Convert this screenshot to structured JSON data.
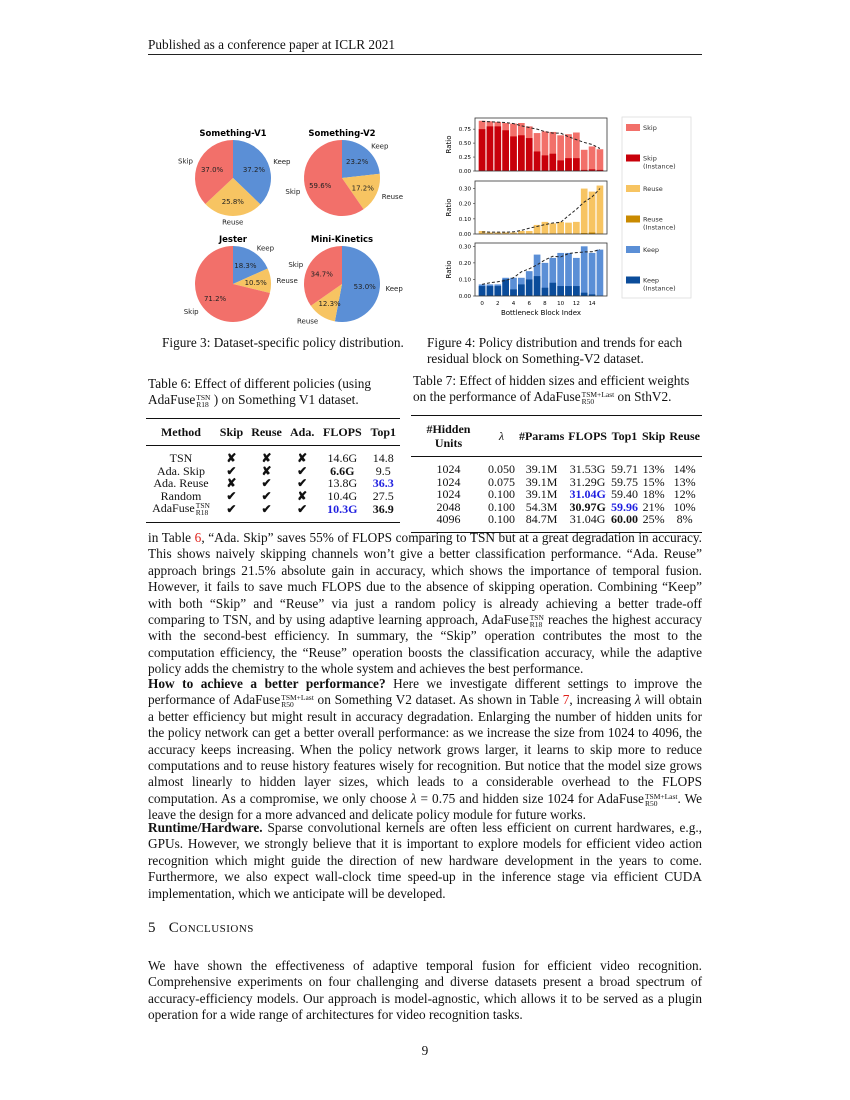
{
  "header": {
    "running_title": "Published as a conference paper at ICLR 2021"
  },
  "figure3": {
    "caption": "Figure 3: Dataset-specific policy distribution.",
    "chart_data": {
      "type": "pie",
      "colors": {
        "Keep": "#5b8fd6",
        "Reuse": "#f7c462",
        "Skip": "#f2706a"
      },
      "pies": [
        {
          "title": "Something-V1",
          "slices": [
            {
              "label": "Keep",
              "value": 37.2,
              "text": "37.2%"
            },
            {
              "label": "Reuse",
              "value": 25.8,
              "text": "25.8%"
            },
            {
              "label": "Skip",
              "value": 37.0,
              "text": "37.0%"
            }
          ]
        },
        {
          "title": "Something-V2",
          "slices": [
            {
              "label": "Keep",
              "value": 23.2,
              "text": "23.2%"
            },
            {
              "label": "Reuse",
              "value": 17.2,
              "text": "17.2%"
            },
            {
              "label": "Skip",
              "value": 59.6,
              "text": "59.6%"
            }
          ]
        },
        {
          "title": "Jester",
          "slices": [
            {
              "label": "Keep",
              "value": 18.3,
              "text": "18.3%"
            },
            {
              "label": "Reuse",
              "value": 10.5,
              "text": "10.5%"
            },
            {
              "label": "Skip",
              "value": 71.2,
              "text": "71.2%"
            }
          ]
        },
        {
          "title": "Mini-Kinetics",
          "slices": [
            {
              "label": "Keep",
              "value": 53.0,
              "text": "53.0%"
            },
            {
              "label": "Reuse",
              "value": 12.3,
              "text": "12.3%"
            },
            {
              "label": "Skip",
              "value": 34.7,
              "text": "34.7%"
            }
          ]
        }
      ]
    }
  },
  "figure4": {
    "caption": "Figure 4: Policy distribution and trends for each residual block on Something-V2 dataset.",
    "chart_data": {
      "type": "bar",
      "xlabel": "Bottleneck Block Index",
      "ylabel": "Ratio",
      "x": [
        0,
        1,
        2,
        3,
        4,
        5,
        6,
        7,
        8,
        9,
        10,
        11,
        12,
        13,
        14,
        15
      ],
      "xticks": [
        "0",
        "2",
        "4",
        "6",
        "8",
        "10",
        "12",
        "14"
      ],
      "panels": [
        {
          "ylim": [
            0,
            0.95
          ],
          "yticks": [
            "0.00",
            "0.25",
            "0.50",
            "0.75"
          ],
          "ytick_values": [
            0,
            0.25,
            0.5,
            0.75
          ],
          "series": [
            {
              "name": "Skip",
              "color": "#f2706a",
              "values": [
                0.9,
                0.89,
                0.88,
                0.86,
                0.85,
                0.86,
                0.8,
                0.68,
                0.71,
                0.7,
                0.64,
                0.66,
                0.69,
                0.38,
                0.44,
                0.39
              ]
            },
            {
              "name": "Skip (Instance)",
              "color": "#c8000a",
              "values": [
                0.75,
                0.8,
                0.8,
                0.73,
                0.62,
                0.64,
                0.59,
                0.35,
                0.28,
                0.31,
                0.19,
                0.23,
                0.23,
                0.02,
                0.03,
                0.02
              ]
            }
          ]
        },
        {
          "ylim": [
            0,
            0.35
          ],
          "yticks": [
            "0.00",
            "0.10",
            "0.20",
            "0.30"
          ],
          "ytick_values": [
            0,
            0.1,
            0.2,
            0.3
          ],
          "series": [
            {
              "name": "Reuse",
              "color": "#f7c462",
              "values": [
                0.02,
                0.01,
                0.01,
                0.01,
                0.01,
                0.02,
                0.02,
                0.06,
                0.08,
                0.07,
                0.08,
                0.075,
                0.08,
                0.3,
                0.28,
                0.32
              ]
            },
            {
              "name": "Reuse (Instance)",
              "color": "#c98a00",
              "values": [
                0,
                0,
                0,
                0,
                0,
                0,
                0,
                0.003,
                0,
                0,
                0,
                0,
                0,
                0.006,
                0.01,
                0
              ]
            }
          ]
        },
        {
          "ylim": [
            0,
            0.32
          ],
          "yticks": [
            "0.00",
            "0.10",
            "0.20",
            "0.30"
          ],
          "ytick_values": [
            0,
            0.1,
            0.2,
            0.3
          ],
          "series": [
            {
              "name": "Keep",
              "color": "#5b8fd6",
              "values": [
                0.07,
                0.07,
                0.07,
                0.11,
                0.11,
                0.11,
                0.15,
                0.25,
                0.2,
                0.23,
                0.26,
                0.26,
                0.23,
                0.3,
                0.26,
                0.28
              ]
            },
            {
              "name": "Keep (Instance)",
              "color": "#0b4c9a",
              "values": [
                0.06,
                0.06,
                0.06,
                0.1,
                0.04,
                0.07,
                0.1,
                0.12,
                0.05,
                0.08,
                0.06,
                0.06,
                0.06,
                0.02,
                0.01,
                0.0
              ]
            }
          ]
        }
      ],
      "legend": [
        "Skip",
        "Skip\n(Instance)",
        "Reuse",
        "Reuse\n(Instance)",
        "Keep",
        "Keep\n(Instance)"
      ],
      "legend_position": "right"
    }
  },
  "table6": {
    "caption_pre": "Table 6: Effect of different policies (using AdaFuse",
    "caption_sup": "TSN",
    "caption_sub": "R18",
    "caption_post": " ) on Something V1 dataset.",
    "headers": [
      "Method",
      "Skip",
      "Reuse",
      "Ada.",
      "FLOPS",
      "Top1"
    ],
    "rows": [
      {
        "cells": [
          "TSN",
          "✘",
          "✘",
          "✘",
          "14.6G",
          "14.8"
        ]
      },
      {
        "cells": [
          "Ada. Skip",
          "✔",
          "✘",
          "✔",
          "6.6G",
          "9.5"
        ],
        "bold": [
          4
        ]
      },
      {
        "cells": [
          "Ada. Reuse",
          "✘",
          "✔",
          "✔",
          "13.8G",
          "36.3"
        ],
        "blue": [
          5
        ]
      },
      {
        "cells": [
          "Random",
          "✔",
          "✔",
          "✘",
          "10.4G",
          "27.5"
        ]
      },
      {
        "cells": [
          "AdaFuse",
          "✔",
          "✔",
          "✔",
          "10.3G",
          "36.9"
        ],
        "sup": "TSN",
        "sub": "R18",
        "blue": [
          4
        ],
        "bold": [
          5
        ]
      }
    ]
  },
  "table7": {
    "caption_pre": "Table 7: Effect of hidden sizes and efficient weights on the performance of AdaFuse",
    "caption_sup": "TSM+Last",
    "caption_sub": "R50",
    "caption_post": " on SthV2.",
    "headers": [
      "#Hidden Units",
      "λ",
      "#Params",
      "FLOPS",
      "Top1",
      "Skip",
      "Reuse"
    ],
    "rows": [
      {
        "cells": [
          "1024",
          "0.050",
          "39.1M",
          "31.53G",
          "59.71",
          "13%",
          "14%"
        ]
      },
      {
        "cells": [
          "1024",
          "0.075",
          "39.1M",
          "31.29G",
          "59.75",
          "15%",
          "13%"
        ]
      },
      {
        "cells": [
          "1024",
          "0.100",
          "39.1M",
          "31.04G",
          "59.40",
          "18%",
          "12%"
        ],
        "blue": [
          3
        ]
      },
      {
        "cells": [
          "2048",
          "0.100",
          "54.3M",
          "30.97G",
          "59.96",
          "21%",
          "10%"
        ],
        "bold": [
          3
        ],
        "blue": [
          4
        ]
      },
      {
        "cells": [
          "4096",
          "0.100",
          "84.7M",
          "31.04G",
          "60.00",
          "25%",
          "8%"
        ],
        "bold": [
          4
        ]
      }
    ]
  },
  "body": {
    "paragraphs": [
      [
        {
          "t": "in Table "
        },
        {
          "t": "6",
          "k": "ref"
        },
        {
          "t": ", “Ada.  Skip” saves 55% of FLOPS comparing to TSN but at a great degradation in accuracy.  This shows naively skipping channels won’t give a better classification performance. “Ada. Reuse” approach brings 21.5% absolute gain in accuracy, which shows the importance of temporal fusion. However, it fails to save much FLOPS due to the absence of skipping operation. Combining “Keep” with both “Skip” and “Reuse” via just a random policy is already achieving a better trade-off comparing to TSN, and by using adaptive learning approach, AdaFuse"
        },
        {
          "k": "ss",
          "sup": "TSN",
          "sub": "R18"
        },
        {
          "t": " reaches the highest accuracy with the second-best efficiency. In summary, the “Skip” operation contributes the most to the computation efficiency, the “Reuse” operation boosts the classification accuracy, while the adaptive policy adds the chemistry to the whole system and achieves the best performance."
        }
      ],
      [
        {
          "t": "How to achieve a better performance?",
          "k": "b"
        },
        {
          "t": " Here we investigate different settings to improve the performance of AdaFuse"
        },
        {
          "k": "ss",
          "sup": "TSM+Last",
          "sub": "R50"
        },
        {
          "t": " on Something V2 dataset. As shown in Table "
        },
        {
          "t": "7",
          "k": "ref"
        },
        {
          "t": ", increasing "
        },
        {
          "t": "λ",
          "k": "i"
        },
        {
          "t": " will obtain a better efficiency but might result in accuracy degradation. Enlarging the number of hidden units for the policy network can get a better overall performance: as we increase the size from 1024 to 4096, the accuracy keeps increasing. When the policy network grows larger, it learns to skip more to reduce computations and to reuse history features wisely for recognition. But notice that the model size grows almost linearly to hidden layer sizes, which leads to a considerable overhead to the FLOPS computation. As a compromise, we only choose "
        },
        {
          "t": "λ",
          "k": "i"
        },
        {
          "t": " = 0.75 and hidden size 1024 for AdaFuse"
        },
        {
          "k": "ss",
          "sup": "TSM+Last",
          "sub": "R50"
        },
        {
          "t": ". We leave the design for a more advanced and delicate policy module for future works."
        }
      ],
      [
        {
          "t": "Runtime/Hardware.",
          "k": "b"
        },
        {
          "t": " Sparse convolutional kernels are often less efficient on current hardwares, e.g., GPUs. However, we strongly believe that it is important to explore models for efficient video action recognition which might guide the direction of new hardware development in the years to come. Furthermore, we also expect wall-clock time speed-up in the inference stage via efficient CUDA implementation, which we anticipate will be developed."
        }
      ]
    ],
    "section_number": "5",
    "section_title": "Conclusions",
    "conclusion": [
      [
        {
          "t": "We have shown the effectiveness of adaptive temporal fusion for efficient video recognition. Comprehensive experiments on four challenging and diverse datasets present a broad spectrum of accuracy-efficiency models. Our approach is model-agnostic, which allows it to be served as a plugin operation for a wide range of architectures for video recognition tasks."
        }
      ]
    ]
  },
  "page_number": "9"
}
